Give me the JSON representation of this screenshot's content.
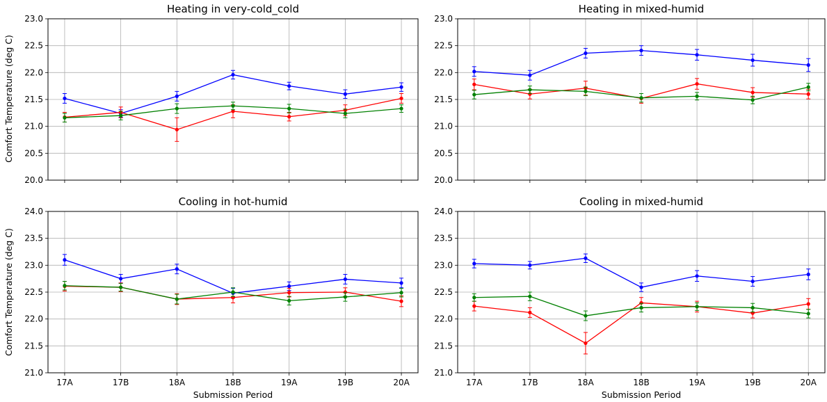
{
  "figure": {
    "ylabel": "Comfort Temperature (deg C)",
    "xlabel": "Submission Period"
  },
  "chart_data": [
    {
      "type": "line",
      "title": "Heating in very-cold_cold",
      "xlabel": "",
      "ylabel": "Comfort Temperature (deg C)",
      "categories": [
        "17A",
        "17B",
        "18A",
        "18B",
        "19A",
        "19B",
        "20A"
      ],
      "ylim": [
        20.0,
        23.0
      ],
      "yticks": [
        "20.0",
        "20.5",
        "21.0",
        "21.5",
        "22.0",
        "22.5",
        "23.0"
      ],
      "grid": true,
      "series": [
        {
          "color": "#0000ff",
          "values": [
            21.52,
            21.24,
            21.56,
            21.96,
            21.75,
            21.6,
            21.73
          ],
          "errors": [
            0.09,
            0.07,
            0.09,
            0.08,
            0.07,
            0.08,
            0.08
          ]
        },
        {
          "color": "#ff0000",
          "values": [
            21.17,
            21.26,
            20.94,
            21.28,
            21.18,
            21.3,
            21.52
          ],
          "errors": [
            0.09,
            0.1,
            0.22,
            0.12,
            0.08,
            0.1,
            0.09
          ]
        },
        {
          "color": "#008000",
          "values": [
            21.16,
            21.2,
            21.33,
            21.38,
            21.33,
            21.24,
            21.33
          ],
          "errors": [
            0.08,
            0.08,
            0.09,
            0.07,
            0.08,
            0.08,
            0.07
          ]
        }
      ]
    },
    {
      "type": "line",
      "title": "Heating in mixed-humid",
      "xlabel": "",
      "ylabel": "",
      "categories": [
        "17A",
        "17B",
        "18A",
        "18B",
        "19A",
        "19B",
        "20A"
      ],
      "ylim": [
        20.0,
        23.0
      ],
      "yticks": [
        "20.0",
        "20.5",
        "21.0",
        "21.5",
        "22.0",
        "22.5",
        "23.0"
      ],
      "grid": true,
      "series": [
        {
          "color": "#0000ff",
          "values": [
            22.02,
            21.95,
            22.36,
            22.41,
            22.33,
            22.23,
            22.14
          ],
          "errors": [
            0.09,
            0.09,
            0.09,
            0.09,
            0.1,
            0.11,
            0.12
          ]
        },
        {
          "color": "#ff0000",
          "values": [
            21.78,
            21.6,
            21.71,
            21.52,
            21.79,
            21.63,
            21.6
          ],
          "errors": [
            0.1,
            0.09,
            0.13,
            0.09,
            0.1,
            0.09,
            0.09
          ]
        },
        {
          "color": "#008000",
          "values": [
            21.59,
            21.68,
            21.65,
            21.53,
            21.56,
            21.49,
            21.73
          ],
          "errors": [
            0.08,
            0.07,
            0.08,
            0.08,
            0.07,
            0.07,
            0.07
          ]
        }
      ]
    },
    {
      "type": "line",
      "title": "Cooling in hot-humid",
      "xlabel": "Submission Period",
      "ylabel": "Comfort Temperature (deg C)",
      "categories": [
        "17A",
        "17B",
        "18A",
        "18B",
        "19A",
        "19B",
        "20A"
      ],
      "ylim": [
        21.0,
        24.0
      ],
      "yticks": [
        "21.0",
        "21.5",
        "22.0",
        "22.5",
        "23.0",
        "23.5",
        "24.0"
      ],
      "grid": true,
      "series": [
        {
          "color": "#0000ff",
          "values": [
            23.1,
            22.75,
            22.93,
            22.48,
            22.61,
            22.74,
            22.67
          ],
          "errors": [
            0.1,
            0.08,
            0.09,
            0.09,
            0.08,
            0.09,
            0.09
          ]
        },
        {
          "color": "#ff0000",
          "values": [
            22.61,
            22.59,
            22.37,
            22.4,
            22.49,
            22.5,
            22.33
          ],
          "errors": [
            0.09,
            0.08,
            0.1,
            0.1,
            0.08,
            0.08,
            0.1
          ]
        },
        {
          "color": "#008000",
          "values": [
            22.62,
            22.59,
            22.37,
            22.5,
            22.34,
            22.41,
            22.49
          ],
          "errors": [
            0.08,
            0.07,
            0.09,
            0.08,
            0.08,
            0.08,
            0.08
          ]
        }
      ]
    },
    {
      "type": "line",
      "title": "Cooling in mixed-humid",
      "xlabel": "Submission Period",
      "ylabel": "",
      "categories": [
        "17A",
        "17B",
        "18A",
        "18B",
        "19A",
        "19B",
        "20A"
      ],
      "ylim": [
        21.0,
        24.0
      ],
      "yticks": [
        "21.0",
        "21.5",
        "22.0",
        "22.5",
        "23.0",
        "23.5",
        "24.0"
      ],
      "grid": true,
      "series": [
        {
          "color": "#0000ff",
          "values": [
            23.03,
            23.0,
            23.13,
            22.59,
            22.8,
            22.7,
            22.83
          ],
          "errors": [
            0.08,
            0.07,
            0.08,
            0.08,
            0.1,
            0.09,
            0.1
          ]
        },
        {
          "color": "#ff0000",
          "values": [
            22.24,
            22.12,
            21.55,
            22.3,
            22.23,
            22.11,
            22.28
          ],
          "errors": [
            0.09,
            0.09,
            0.2,
            0.1,
            0.1,
            0.09,
            0.1
          ]
        },
        {
          "color": "#008000",
          "values": [
            22.4,
            22.42,
            22.06,
            22.21,
            22.23,
            22.21,
            22.1
          ],
          "errors": [
            0.07,
            0.08,
            0.09,
            0.08,
            0.07,
            0.08,
            0.08
          ]
        }
      ]
    }
  ]
}
